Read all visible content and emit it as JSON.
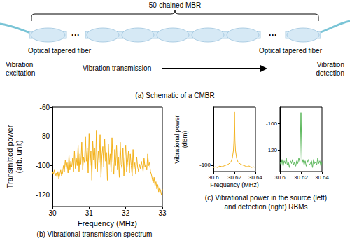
{
  "schematic": {
    "chain_label": "50-chained MBR",
    "ellipsis": "···",
    "fiber_left": "Optical tapered fiber",
    "fiber_right": "Optical tapered fiber",
    "excitation": [
      "Vibration",
      "excitation"
    ],
    "transmission": "Vibration transmission",
    "detection": [
      "Vibration",
      "detection"
    ],
    "caption": "(a) Schematic of a CMBR"
  },
  "captions": {
    "b": [
      "(b) Vibrational transmission spectrum"
    ],
    "c": [
      "(c) Vibrational power in the source (left)",
      "and detection (right) RBMs"
    ]
  },
  "chart_data": [
    {
      "type": "line",
      "color": "#f3b21c",
      "xlabel": "Frequency (MHz)",
      "ylabel": [
        "Transmitted power",
        "(arb. unit)"
      ],
      "xlim": [
        30,
        33
      ],
      "xticks": [
        30,
        31,
        32,
        33
      ],
      "ylim": [
        -128,
        -60
      ],
      "yticks": [
        -60,
        -80,
        -100,
        -120
      ],
      "grid": false,
      "x": [
        30,
        30.025,
        30.05,
        30.075,
        30.1,
        30.125,
        30.15,
        30.175,
        30.2,
        30.225,
        30.25,
        30.275,
        30.3,
        30.325,
        30.35,
        30.375,
        30.4,
        30.425,
        30.45,
        30.475,
        30.5,
        30.525,
        30.55,
        30.575,
        30.6,
        30.625,
        30.65,
        30.675,
        30.7,
        30.725,
        30.75,
        30.775,
        30.8,
        30.825,
        30.85,
        30.875,
        30.9,
        30.925,
        30.95,
        30.975,
        31,
        31.025,
        31.05,
        31.075,
        31.1,
        31.125,
        31.15,
        31.175,
        31.2,
        31.225,
        31.25,
        31.275,
        31.3,
        31.325,
        31.35,
        31.375,
        31.4,
        31.425,
        31.45,
        31.475,
        31.5,
        31.525,
        31.55,
        31.575,
        31.6,
        31.625,
        31.65,
        31.675,
        31.7,
        31.725,
        31.75,
        31.775,
        31.8,
        31.825,
        31.85,
        31.875,
        31.9,
        31.925,
        31.95,
        31.975,
        32,
        32.025,
        32.05,
        32.075,
        32.1,
        32.125,
        32.15,
        32.175,
        32.2,
        32.225,
        32.25,
        32.275,
        32.3,
        32.325,
        32.35,
        32.375,
        32.4,
        32.425,
        32.45,
        32.475,
        32.5,
        32.525,
        32.55,
        32.575,
        32.6,
        32.625,
        32.65,
        32.675,
        32.7,
        32.725,
        32.75,
        32.775,
        32.8,
        32.825,
        32.85,
        32.875,
        32.9,
        32.925,
        32.95,
        32.975,
        33
      ],
      "values": [
        -104,
        -106,
        -103,
        -107,
        -105,
        -108,
        -104,
        -109,
        -106,
        -103,
        -107,
        -105,
        -100,
        -104,
        -96,
        -102,
        -98,
        -105,
        -93,
        -103,
        -97,
        -101,
        -95,
        -104,
        -90,
        -102,
        -95,
        -100,
        -86,
        -104,
        -92,
        -99,
        -84,
        -103,
        -94,
        -98,
        -80,
        -97,
        -88,
        -105,
        -78,
        -100,
        -90,
        -110,
        -83,
        -96,
        -88,
        -102,
        -76,
        -104,
        -90,
        -98,
        -79,
        -108,
        -93,
        -87,
        -101,
        -82,
        -97,
        -91,
        -110,
        -85,
        -99,
        -92,
        -104,
        -81,
        -97,
        -106,
        -89,
        -100,
        -86,
        -103,
        -94,
        -108,
        -84,
        -99,
        -102,
        -88,
        -107,
        -95,
        -86,
        -104,
        -98,
        -90,
        -105,
        -92,
        -100,
        -107,
        -89,
        -103,
        -98,
        -106,
        -94,
        -101,
        -104,
        -99,
        -102,
        -97,
        -100,
        -104,
        -95,
        -101,
        -99,
        -103,
        -92,
        -100,
        -98,
        -104,
        -106,
        -109,
        -112,
        -108,
        -114,
        -111,
        -116,
        -113,
        -118,
        -115,
        -117,
        -120,
        -116
      ]
    },
    {
      "type": "line",
      "color": "#f3b21c",
      "xlabel": "Frequency (MHz)",
      "ylabel": [
        "Vibrational power",
        "(dBm)"
      ],
      "xlim": [
        30.6,
        30.64
      ],
      "xticks": [
        30.6,
        30.62,
        30.64
      ],
      "ylim": [
        -104,
        -64
      ],
      "yticks": [
        -100
      ],
      "grid": false,
      "x": [
        30.6,
        30.602,
        30.604,
        30.606,
        30.608,
        30.61,
        30.612,
        30.614,
        30.616,
        30.617,
        30.618,
        30.619,
        30.6195,
        30.62,
        30.6205,
        30.621,
        30.622,
        30.623,
        30.624,
        30.626,
        30.628,
        30.63,
        30.632,
        30.634,
        30.636,
        30.638,
        30.64
      ],
      "values": [
        -101.5,
        -101,
        -101.5,
        -100.5,
        -101,
        -100.5,
        -100,
        -99.5,
        -98.5,
        -97.5,
        -95.5,
        -91,
        -85,
        -67,
        -85,
        -91,
        -95.5,
        -97.5,
        -98.5,
        -99.5,
        -100,
        -100.5,
        -101,
        -100.5,
        -101.5,
        -101,
        -101.5
      ]
    },
    {
      "type": "line",
      "color": "#5cb85c",
      "xlim": [
        30.6,
        30.64
      ],
      "xticks": [
        30.6,
        30.62,
        30.64
      ],
      "ylim": [
        -136,
        -88
      ],
      "yticks": [
        -100,
        -120
      ],
      "grid": false,
      "x": [
        30.6,
        30.601,
        30.602,
        30.603,
        30.604,
        30.605,
        30.606,
        30.607,
        30.608,
        30.609,
        30.61,
        30.611,
        30.612,
        30.613,
        30.614,
        30.615,
        30.616,
        30.617,
        30.618,
        30.619,
        30.62,
        30.621,
        30.622,
        30.623,
        30.624,
        30.625,
        30.626,
        30.627,
        30.628,
        30.629,
        30.63,
        30.631,
        30.632,
        30.633,
        30.634,
        30.635,
        30.636,
        30.637,
        30.638,
        30.639,
        30.64
      ],
      "values": [
        -129,
        -131,
        -127,
        -132,
        -128,
        -130,
        -126,
        -131,
        -129,
        -133,
        -128,
        -130,
        -127,
        -131,
        -129,
        -132,
        -128,
        -130,
        -126,
        -129,
        -92,
        -130,
        -127,
        -131,
        -128,
        -132,
        -129,
        -127,
        -131,
        -130,
        -128,
        -133,
        -127,
        -130,
        -129,
        -131,
        -126,
        -130,
        -128,
        -132,
        -129
      ]
    }
  ]
}
